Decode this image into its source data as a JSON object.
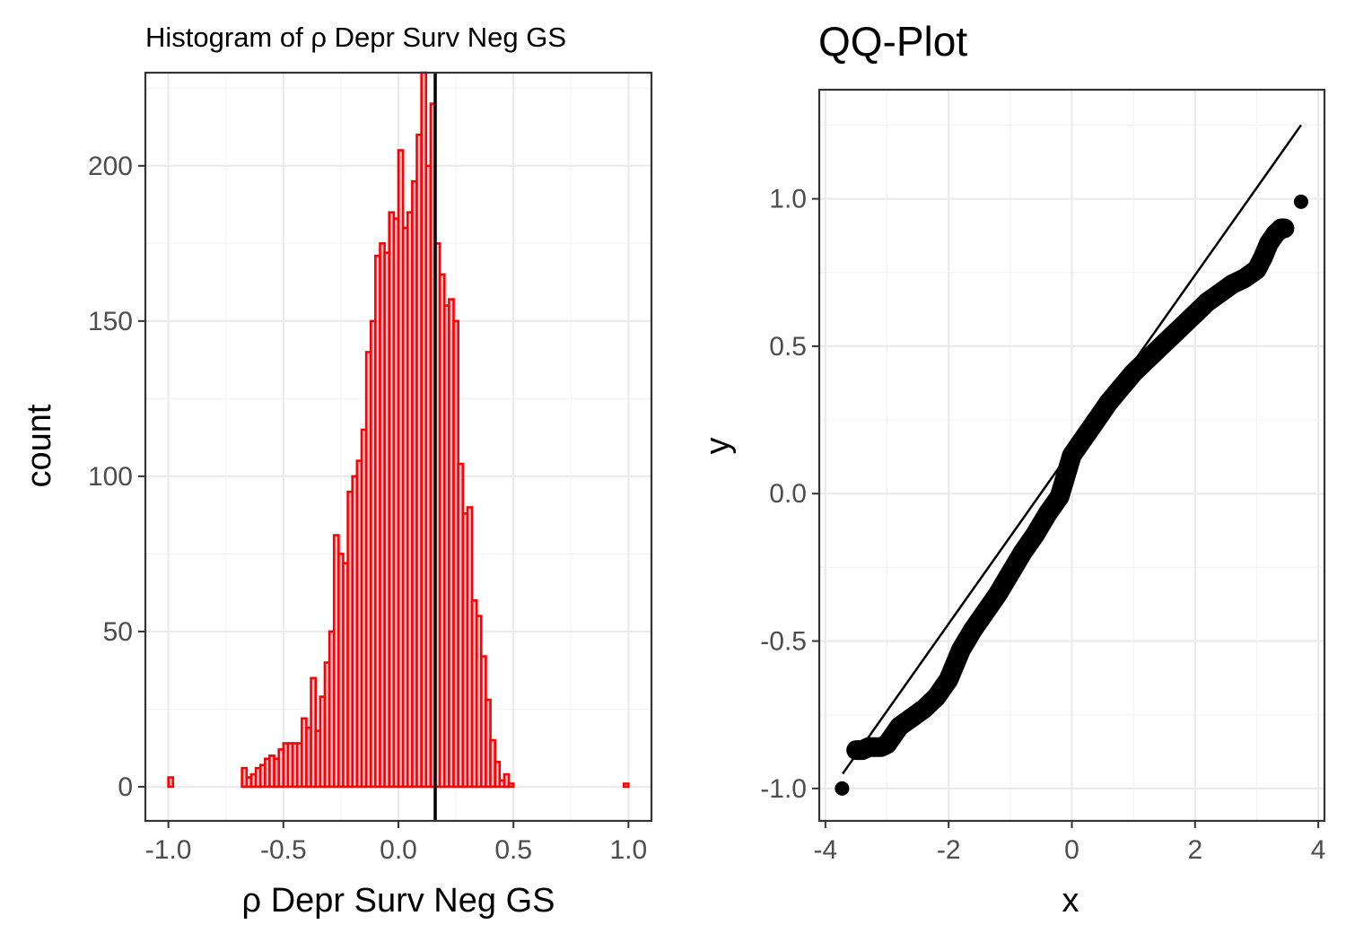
{
  "chart_data": [
    {
      "type": "bar",
      "title": "Histogram of ρ Depr Surv Neg GS",
      "xlabel": "ρ Depr Surv Neg GS",
      "ylabel": "count",
      "xlim": [
        -1.1,
        1.1
      ],
      "ylim": [
        -11,
        230
      ],
      "x_ticks": [
        "-1.0",
        "-0.5",
        "0.0",
        "0.5",
        "1.0"
      ],
      "y_ticks": [
        "0",
        "50",
        "100",
        "150",
        "200"
      ],
      "bin_width": 0.02,
      "bin_start": -1.0,
      "values": [
        3,
        0,
        0,
        0,
        0,
        0,
        0,
        0,
        0,
        0,
        0,
        0,
        0,
        0,
        0,
        0,
        6,
        3,
        4,
        6,
        7,
        9,
        10,
        9,
        12,
        14,
        14,
        14,
        14,
        22,
        19,
        35,
        18,
        29,
        40,
        50,
        81,
        75,
        72,
        95,
        100,
        105,
        115,
        140,
        150,
        171,
        175,
        172,
        185,
        183,
        205,
        180,
        185,
        195,
        210,
        230,
        200,
        220,
        175,
        165,
        155,
        157,
        150,
        104,
        88,
        90,
        60,
        55,
        42,
        28,
        15,
        8,
        2,
        4,
        1,
        0,
        0,
        0,
        0,
        0,
        0,
        0,
        0,
        0,
        0,
        0,
        0,
        0,
        0,
        0,
        0,
        0,
        0,
        0,
        0,
        0,
        0,
        0,
        0,
        1
      ],
      "vline": 0.16,
      "fill_color": "#ffc0cb",
      "edge_color": "#ff0000",
      "grid": true
    },
    {
      "type": "scatter",
      "title": "QQ-Plot",
      "xlabel": "x",
      "ylabel": "y",
      "xlim": [
        -4.1,
        4.1
      ],
      "ylim": [
        -1.11,
        1.37
      ],
      "x_ticks": [
        "-4",
        "-2",
        "0",
        "2",
        "4"
      ],
      "y_ticks": [
        "-1.0",
        "-0.5",
        "0.0",
        "0.5",
        "1.0"
      ],
      "reference_line": {
        "x": [
          -3.72,
          3.72
        ],
        "y": [
          -0.95,
          1.25
        ]
      },
      "qq_points": [
        [
          -3.73,
          -1.0
        ],
        [
          -3.5,
          -0.87
        ],
        [
          -3.4,
          -0.87
        ],
        [
          -3.3,
          -0.86
        ],
        [
          -3.2,
          -0.86
        ],
        [
          -3.1,
          -0.86
        ],
        [
          -3.0,
          -0.85
        ],
        [
          -2.9,
          -0.82
        ],
        [
          -2.8,
          -0.79
        ],
        [
          -2.6,
          -0.76
        ],
        [
          -2.4,
          -0.73
        ],
        [
          -2.2,
          -0.69
        ],
        [
          -2.0,
          -0.63
        ],
        [
          -1.8,
          -0.53
        ],
        [
          -1.6,
          -0.46
        ],
        [
          -1.4,
          -0.4
        ],
        [
          -1.2,
          -0.34
        ],
        [
          -1.0,
          -0.27
        ],
        [
          -0.8,
          -0.2
        ],
        [
          -0.6,
          -0.14
        ],
        [
          -0.4,
          -0.07
        ],
        [
          -0.2,
          -0.01
        ],
        [
          0.0,
          0.13
        ],
        [
          0.2,
          0.19
        ],
        [
          0.4,
          0.25
        ],
        [
          0.6,
          0.31
        ],
        [
          0.8,
          0.36
        ],
        [
          1.0,
          0.41
        ],
        [
          1.2,
          0.45
        ],
        [
          1.4,
          0.49
        ],
        [
          1.6,
          0.53
        ],
        [
          1.8,
          0.57
        ],
        [
          2.0,
          0.61
        ],
        [
          2.2,
          0.65
        ],
        [
          2.4,
          0.68
        ],
        [
          2.6,
          0.71
        ],
        [
          2.8,
          0.73
        ],
        [
          3.0,
          0.76
        ],
        [
          3.1,
          0.8
        ],
        [
          3.2,
          0.85
        ],
        [
          3.3,
          0.88
        ],
        [
          3.4,
          0.9
        ],
        [
          3.45,
          0.9
        ],
        [
          3.72,
          0.99
        ]
      ],
      "point_color": "#000000",
      "grid": true
    }
  ]
}
